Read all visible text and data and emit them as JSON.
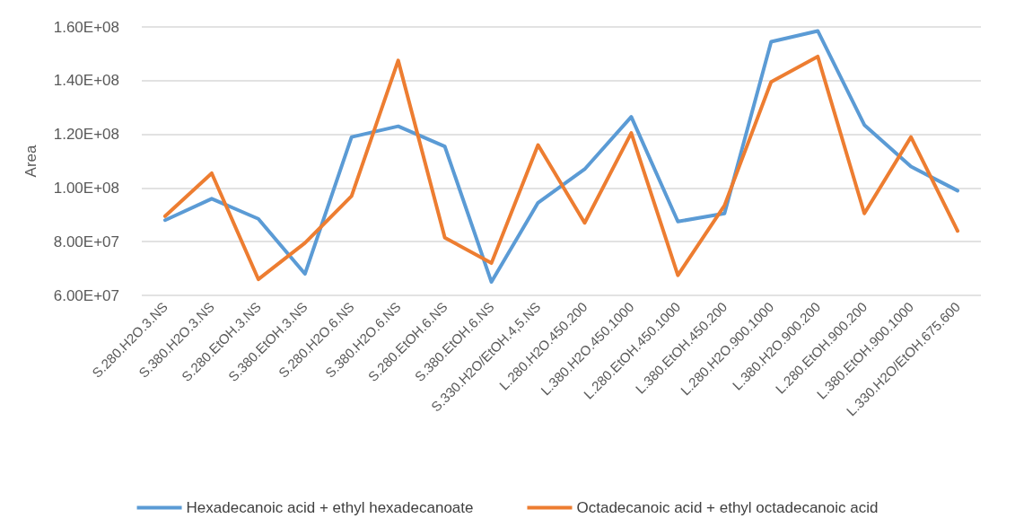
{
  "chart_data": {
    "type": "line",
    "ylabel": "Area",
    "categories": [
      "S.280.H2O.3.NS",
      "S.380.H2O.3.NS",
      "S.280.EtOH.3.NS",
      "S.380.EtOH.3.NS",
      "S.280.H2O.6.NS",
      "S.380.H2O.6.NS",
      "S.280.EtOH.6.NS",
      "S.380.EtOH.6.NS",
      "S.330.H2O/EtOH.4,5.NS",
      "L.280.H2O.450.200",
      "L.380.H2O.450.1000",
      "L.280.EtOH.450.1000",
      "L.380.EtOH.450.200",
      "L.280.H2O.900.1000",
      "L.380.H2O.900.200",
      "L.280.EtOH.900.200",
      "L.380.EtOH.900.1000",
      "L.330.H2O/EtOH.675.600"
    ],
    "series": [
      {
        "name": "Hexadecanoic acid + ethyl hexadecanoate",
        "color": "#5b9bd5",
        "values": [
          88000000,
          96000000,
          88500000,
          68000000,
          119000000,
          123000000,
          115500000,
          65000000,
          94500000,
          107000000,
          126500000,
          87500000,
          90500000,
          154500000,
          158500000,
          123500000,
          108000000,
          99000000
        ]
      },
      {
        "name": "Octadecanoic acid + ethyl octadecanoic acid",
        "color": "#ed7d31",
        "values": [
          89500000,
          105500000,
          66000000,
          79500000,
          97000000,
          147500000,
          81500000,
          72000000,
          116000000,
          87000000,
          120500000,
          67500000,
          93500000,
          139500000,
          149000000,
          90500000,
          119000000,
          84000000
        ]
      }
    ],
    "ylim": [
      60000000,
      160000000
    ],
    "yticks": [
      {
        "value": 60000000,
        "label": "6.00E+07"
      },
      {
        "value": 80000000,
        "label": "8.00E+07"
      },
      {
        "value": 100000000,
        "label": "1.00E+08"
      },
      {
        "value": 120000000,
        "label": "1.20E+08"
      },
      {
        "value": 140000000,
        "label": "1.40E+08"
      },
      {
        "value": 160000000,
        "label": "1.60E+08"
      }
    ],
    "grid": "y",
    "legend": "bottom",
    "marker": "none",
    "line_style": "solid"
  }
}
